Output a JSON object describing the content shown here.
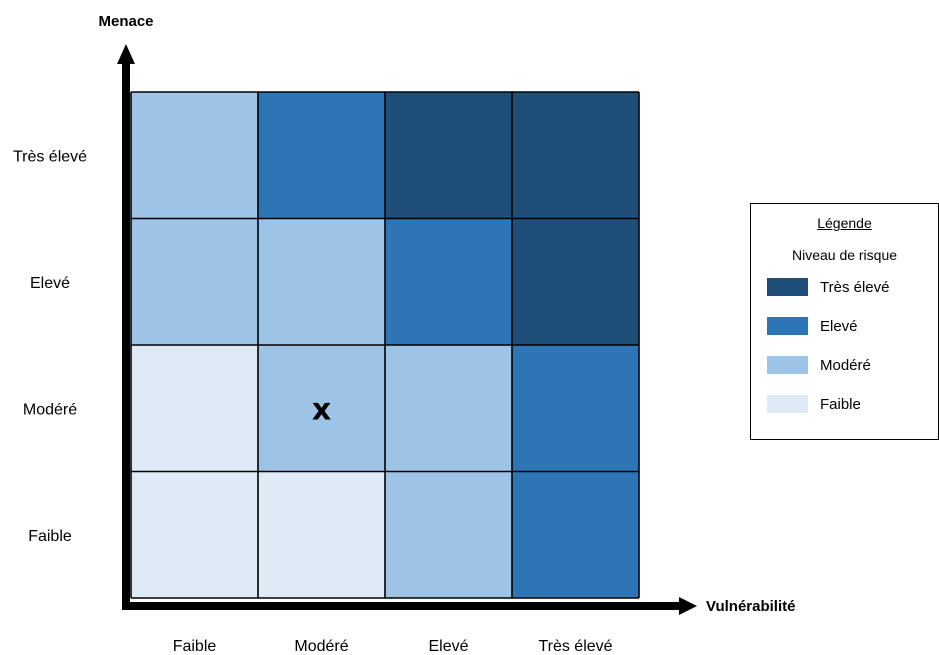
{
  "chart_data": {
    "type": "heatmap",
    "title": "",
    "xlabel": "Vulnérabilité",
    "ylabel": "Menace",
    "x_categories": [
      "Faible",
      "Modéré",
      "Elevé",
      "Très élevé"
    ],
    "y_categories": [
      "Faible",
      "Modéré",
      "Elevé",
      "Très élevé"
    ],
    "cells": [
      [
        "Faible",
        "Faible",
        "Modéré",
        "Elevé"
      ],
      [
        "Faible",
        "Modéré",
        "Modéré",
        "Elevé"
      ],
      [
        "Modéré",
        "Modéré",
        "Elevé",
        "Très élevé"
      ],
      [
        "Modéré",
        "Elevé",
        "Très élevé",
        "Très élevé"
      ]
    ],
    "marker": {
      "text": "x",
      "x": "Modéré",
      "y": "Modéré"
    },
    "legend": {
      "title": "Légende",
      "subtitle": "Niveau de risque",
      "position": "right",
      "items": [
        {
          "label": "Très élevé",
          "color": "#1f4e79"
        },
        {
          "label": "Elevé",
          "color": "#2e75b6"
        },
        {
          "label": "Modéré",
          "color": "#9dc3e6"
        },
        {
          "label": "Faible",
          "color": "#deebf7"
        }
      ]
    },
    "grid": true
  }
}
